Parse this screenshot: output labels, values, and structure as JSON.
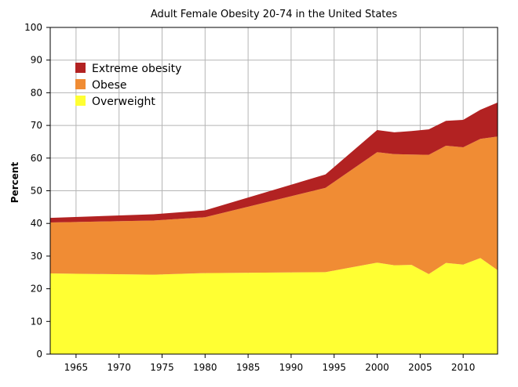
{
  "chart_data": {
    "type": "area",
    "stacked": true,
    "title": "Adult Female Obesity 20-74 in the United States",
    "xlabel": "",
    "ylabel": "Percent",
    "xlim": [
      1962,
      2014
    ],
    "ylim": [
      0,
      100
    ],
    "x_ticks": [
      1965,
      1970,
      1975,
      1980,
      1985,
      1990,
      1995,
      2000,
      2005,
      2010
    ],
    "y_ticks": [
      0,
      10,
      20,
      30,
      40,
      50,
      60,
      70,
      80,
      90,
      100
    ],
    "grid": true,
    "legend_position": "top-left",
    "x": [
      1962,
      1974,
      1980,
      1994,
      2000,
      2002,
      2004,
      2006,
      2008,
      2010,
      2012,
      2014
    ],
    "series": [
      {
        "name": "Overweight",
        "color": "#ffff33",
        "values": [
          24.7,
          24.3,
          24.8,
          25.1,
          28.0,
          27.2,
          27.3,
          24.5,
          27.9,
          27.4,
          29.4,
          25.7
        ]
      },
      {
        "name": "Obese",
        "color": "#f08c34",
        "values": [
          15.6,
          16.6,
          17.1,
          25.8,
          33.8,
          34.0,
          33.8,
          36.5,
          35.9,
          35.9,
          36.5,
          40.9
        ]
      },
      {
        "name": "Extreme obesity",
        "color": "#b22222",
        "values": [
          1.4,
          1.9,
          2.1,
          4.1,
          6.8,
          6.7,
          7.2,
          7.8,
          7.6,
          8.4,
          8.9,
          10.4
        ]
      }
    ]
  }
}
